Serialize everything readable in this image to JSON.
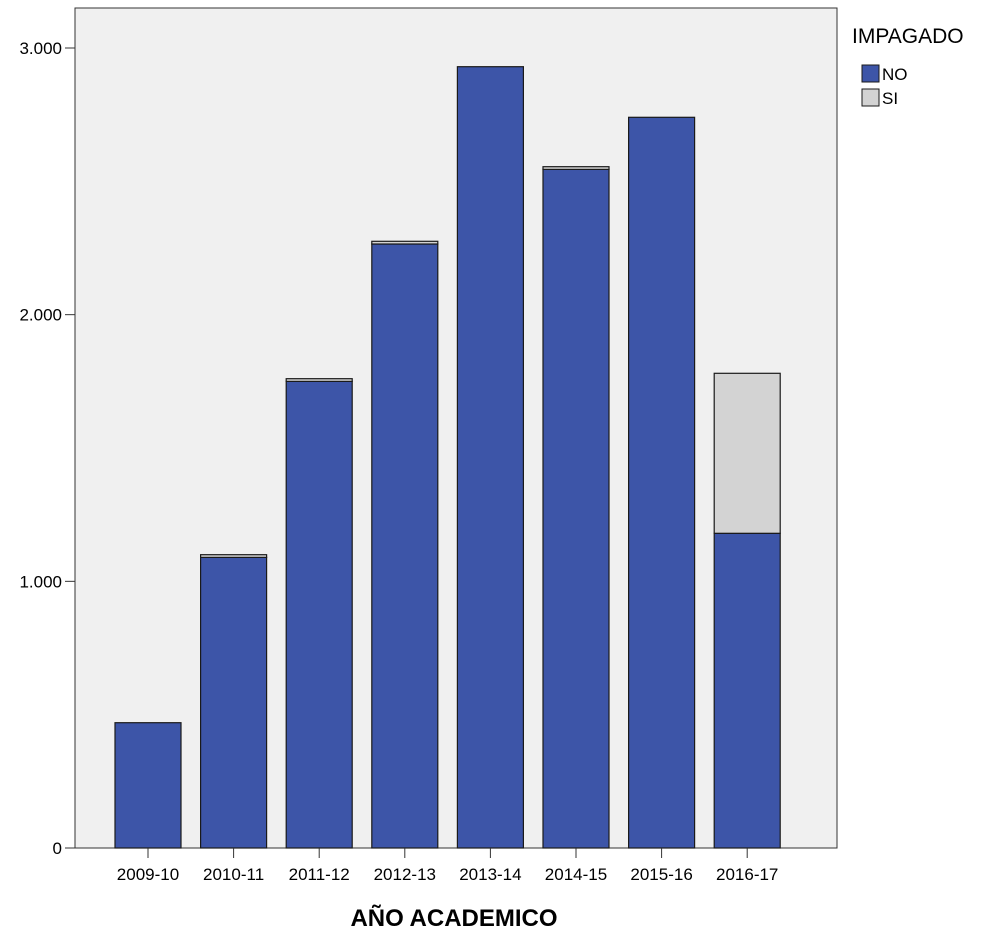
{
  "chart_data": {
    "type": "bar",
    "stacked": true,
    "title": "",
    "xlabel": "AÑO ACADEMICO",
    "ylabel": "",
    "categories": [
      "2009-10",
      "2010-11",
      "2011-12",
      "2012-13",
      "2013-14",
      "2014-15",
      "2015-16",
      "2016-17"
    ],
    "series": [
      {
        "name": "NO",
        "color": "#3d55a8",
        "values": [
          470,
          1090,
          1750,
          2265,
          2930,
          2545,
          2740,
          1180
        ]
      },
      {
        "name": "SI",
        "color": "#d3d3d3",
        "values": [
          0,
          10,
          10,
          10,
          0,
          10,
          0,
          600
        ]
      }
    ],
    "ylim": [
      0,
      3150
    ],
    "yticks": [
      0,
      1000,
      2000,
      3000
    ],
    "ytick_labels": [
      "0",
      "1.000",
      "2.000",
      "3.000"
    ],
    "legend": {
      "title": "IMPAGADO",
      "placement": "top-right"
    },
    "grid": false,
    "plot_background": "#f0f0f0"
  }
}
